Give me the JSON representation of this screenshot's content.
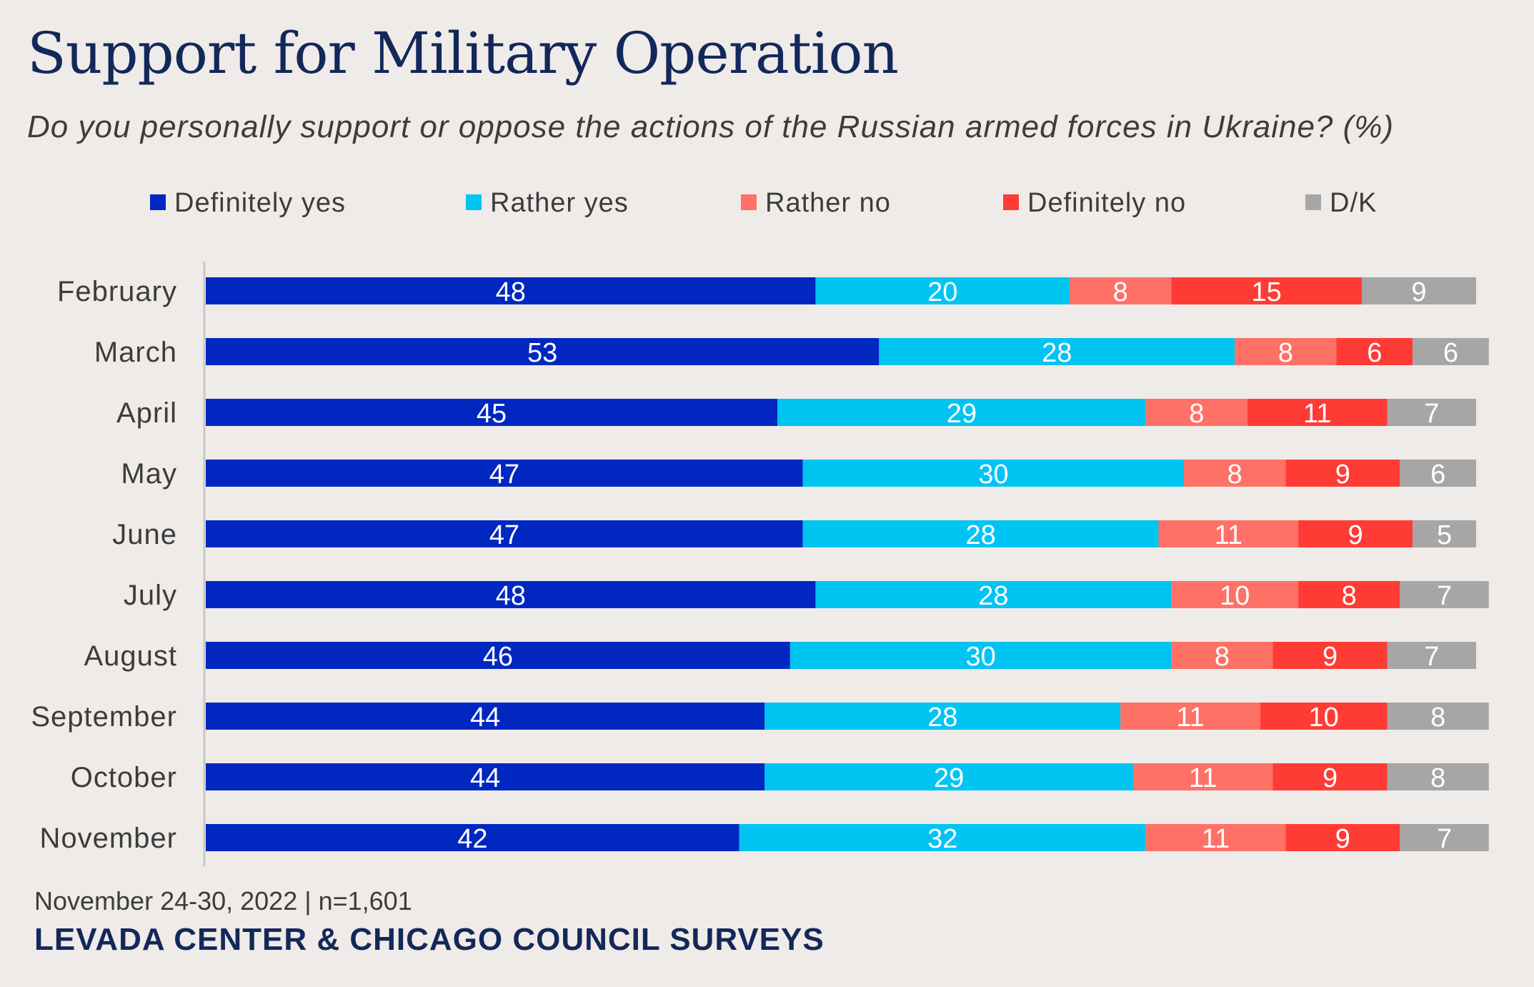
{
  "title": "Support for Military Operation",
  "subtitle": "Do you personally support or oppose the actions of the Russian armed forces in Ukraine? (%)",
  "footer": {
    "source_note": "November 24-30, 2022 | n=1,601",
    "organization": "LEVADA CENTER & CHICAGO COUNCIL SURVEYS"
  },
  "colors": {
    "background": "#efebe8",
    "title": "#13285a",
    "series": [
      "#0028c0",
      "#00c4f2",
      "#ff7166",
      "#ff3b35",
      "#a6a6a6"
    ]
  },
  "chart_data": {
    "type": "bar",
    "orientation": "horizontal",
    "stacked": true,
    "title": "Support for Military Operation",
    "subtitle": "Do you personally support or oppose the actions of the Russian armed forces in Ukraine? (%)",
    "xlim": [
      0,
      100
    ],
    "grid": false,
    "legend_position": "top",
    "categories": [
      "February",
      "March",
      "April",
      "May",
      "June",
      "July",
      "August",
      "September",
      "October",
      "November"
    ],
    "series": [
      {
        "name": "Definitely yes",
        "color": "#0028c0",
        "values": [
          48,
          53,
          45,
          47,
          47,
          48,
          46,
          44,
          44,
          42
        ]
      },
      {
        "name": "Rather yes",
        "color": "#00c4f2",
        "values": [
          20,
          28,
          29,
          30,
          28,
          28,
          30,
          28,
          29,
          32
        ]
      },
      {
        "name": "Rather no",
        "color": "#ff7166",
        "values": [
          8,
          8,
          8,
          8,
          11,
          10,
          8,
          11,
          11,
          11
        ]
      },
      {
        "name": "Definitely no",
        "color": "#ff3b35",
        "values": [
          15,
          6,
          11,
          9,
          9,
          8,
          9,
          10,
          9,
          9
        ]
      },
      {
        "name": "D/K",
        "color": "#a6a6a6",
        "values": [
          9,
          6,
          7,
          6,
          5,
          7,
          7,
          8,
          8,
          7
        ]
      }
    ]
  }
}
